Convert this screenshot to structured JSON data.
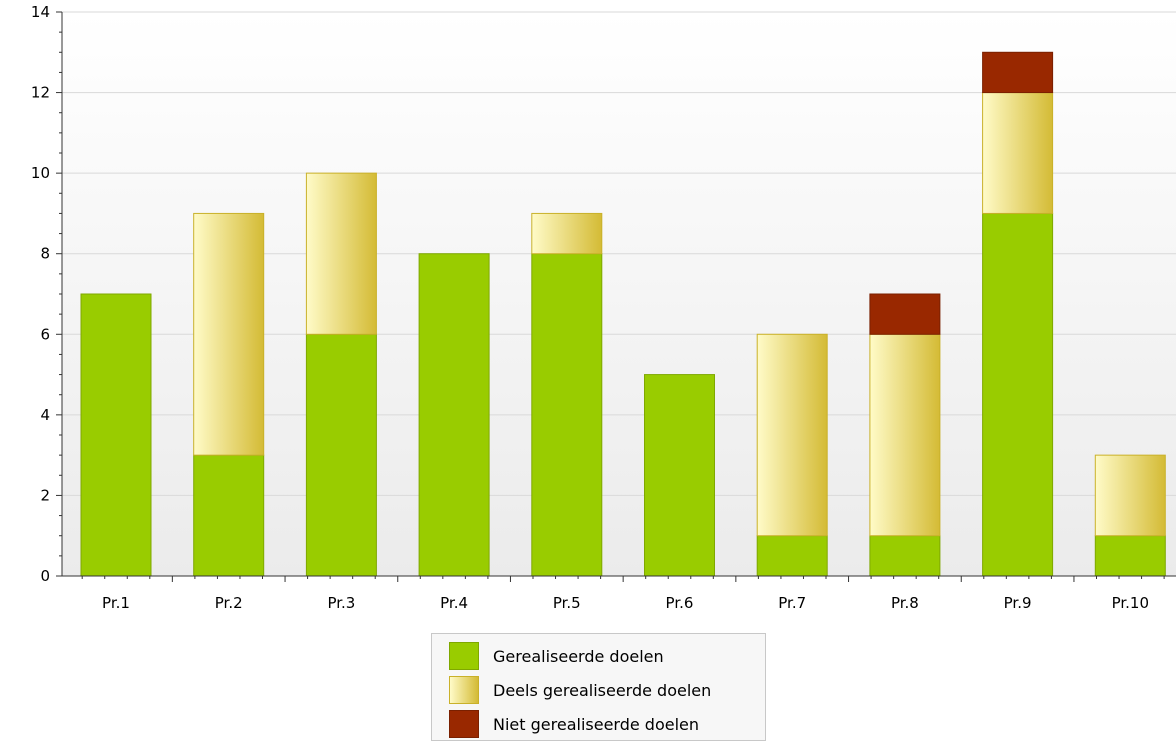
{
  "colors": {
    "realized": "#99cc00",
    "partial_light": "#fffbc8",
    "partial_dark": "#d4bb35",
    "not_realized": "#992800",
    "grid": "#d9d9d9",
    "axis": "#333333"
  },
  "legend": {
    "items": [
      {
        "label": "Gerealiseerde doelen",
        "color_key": "realized"
      },
      {
        "label": "Deels gerealiseerde doelen",
        "color_key": "partial"
      },
      {
        "label": "Niet gerealiseerde doelen",
        "color_key": "not_realized"
      }
    ]
  },
  "chart_data": {
    "type": "bar",
    "stacked": true,
    "categories": [
      "Pr.1",
      "Pr.2",
      "Pr.3",
      "Pr.4",
      "Pr.5",
      "Pr.6",
      "Pr.7",
      "Pr.8",
      "Pr.9",
      "Pr.10"
    ],
    "series": [
      {
        "name": "Gerealiseerde doelen",
        "values": [
          7,
          3,
          6,
          8,
          8,
          5,
          1,
          1,
          9,
          1
        ]
      },
      {
        "name": "Deels gerealiseerde doelen",
        "values": [
          0,
          6,
          4,
          0,
          1,
          0,
          5,
          5,
          3,
          2
        ]
      },
      {
        "name": "Niet gerealiseerde doelen",
        "values": [
          0,
          0,
          0,
          0,
          0,
          0,
          0,
          1,
          1,
          0
        ]
      }
    ],
    "ylim": [
      0,
      14
    ],
    "yticks": [
      0,
      2,
      4,
      6,
      8,
      10,
      12,
      14
    ],
    "grid": true,
    "legend_position": "bottom-center",
    "title": "",
    "xlabel": "",
    "ylabel": ""
  }
}
